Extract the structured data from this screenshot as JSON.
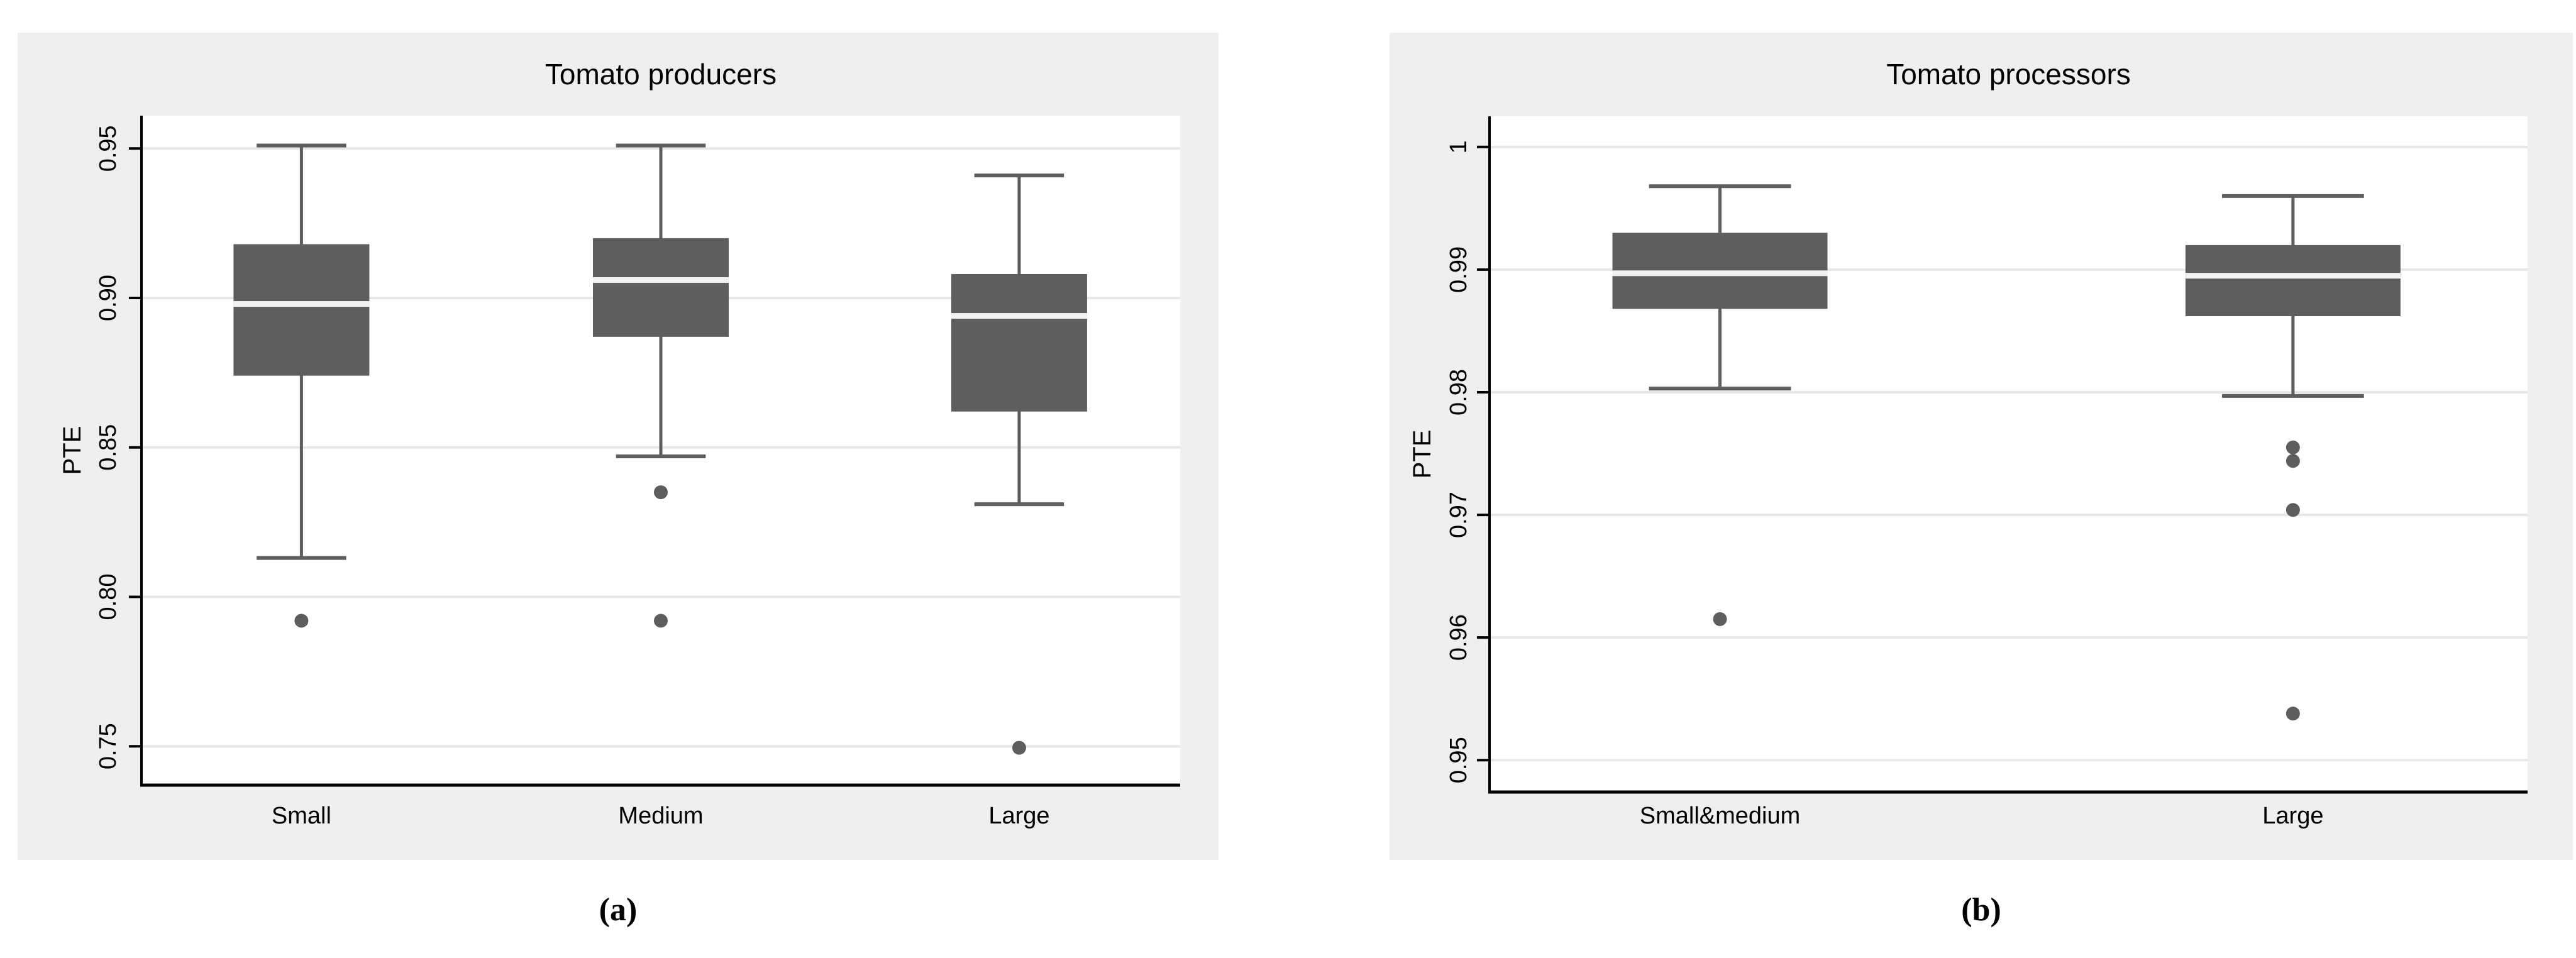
{
  "figure": {
    "captions": [
      {
        "label": "(a)"
      },
      {
        "label": "(b)"
      }
    ]
  },
  "colors": {
    "panel_background": "#efefef",
    "plot_background": "#ffffff",
    "gridline": "#e7e7e7",
    "box_fill": "#5e5e5e",
    "whisker": "#5e5e5e",
    "outlier": "#5e5e5e",
    "median_line": "#f2f2f2",
    "axis": "#000000",
    "text": "#000000"
  },
  "chart_data": [
    {
      "type": "box",
      "title": "Tomato producers",
      "xlabel": "",
      "ylabel": "PTE",
      "grid": true,
      "legend": false,
      "ylim": [
        0.737,
        0.961
      ],
      "yticks": [
        {
          "value": 0.75,
          "label": "0.75"
        },
        {
          "value": 0.8,
          "label": "0.80"
        },
        {
          "value": 0.85,
          "label": "0.85"
        },
        {
          "value": 0.9,
          "label": "0.90"
        },
        {
          "value": 0.95,
          "label": "0.95"
        }
      ],
      "categories": [
        "Small",
        "Medium",
        "Large"
      ],
      "series": [
        {
          "category": "Small",
          "whisker_low": 0.813,
          "q1": 0.874,
          "median": 0.898,
          "q3": 0.918,
          "whisker_high": 0.951,
          "outliers": [
            0.792
          ]
        },
        {
          "category": "Medium",
          "whisker_low": 0.847,
          "q1": 0.887,
          "median": 0.906,
          "q3": 0.92,
          "whisker_high": 0.951,
          "outliers": [
            0.835,
            0.792
          ]
        },
        {
          "category": "Large",
          "whisker_low": 0.831,
          "q1": 0.862,
          "median": 0.894,
          "q3": 0.908,
          "whisker_high": 0.941,
          "outliers": [
            0.7495
          ]
        }
      ]
    },
    {
      "type": "box",
      "title": "Tomato processors",
      "xlabel": "",
      "ylabel": "PTE",
      "grid": true,
      "legend": false,
      "ylim": [
        0.9474,
        1.0025
      ],
      "yticks": [
        {
          "value": 0.95,
          "label": "0.95"
        },
        {
          "value": 0.96,
          "label": "0.96"
        },
        {
          "value": 0.97,
          "label": "0.97"
        },
        {
          "value": 0.98,
          "label": "0.98"
        },
        {
          "value": 0.99,
          "label": "0.99"
        },
        {
          "value": 1.0,
          "label": "1"
        }
      ],
      "categories": [
        "Small&medium",
        "Large"
      ],
      "series": [
        {
          "category": "Small&medium",
          "whisker_low": 0.9803,
          "q1": 0.9868,
          "median": 0.9897,
          "q3": 0.993,
          "whisker_high": 0.9968,
          "outliers": [
            0.9615
          ]
        },
        {
          "category": "Large",
          "whisker_low": 0.9797,
          "q1": 0.9862,
          "median": 0.9895,
          "q3": 0.992,
          "whisker_high": 0.996,
          "outliers": [
            0.9755,
            0.9744,
            0.9704,
            0.9538
          ]
        }
      ]
    }
  ]
}
